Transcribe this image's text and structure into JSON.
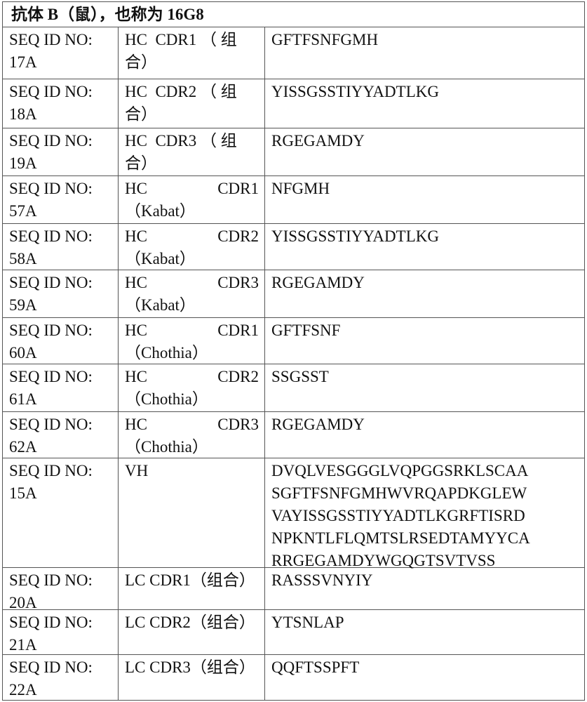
{
  "title": "抗体 B（鼠），也称为 16G8",
  "rows": [
    {
      "seq": [
        "SEQ ID NO:",
        "17A"
      ],
      "label": [
        "HC  CDR1 （ 组",
        "合）"
      ],
      "label_style": "plain",
      "value": [
        "GFTFSNFGMH"
      ]
    },
    {
      "seq": [
        "SEQ ID NO:",
        "18A"
      ],
      "label": [
        "HC  CDR2 （ 组",
        "合）"
      ],
      "label_style": "plain",
      "value": [
        "YISSGSSTIYYADTLKG"
      ]
    },
    {
      "seq": [
        "SEQ ID NO:",
        "19A"
      ],
      "label": [
        "HC  CDR3 （ 组",
        "合）"
      ],
      "label_style": "plain",
      "value": [
        "RGEGAMDY"
      ]
    },
    {
      "seq": [
        "SEQ ID NO:",
        "57A"
      ],
      "label": [
        "HC",
        "CDR1",
        "（Kabat）"
      ],
      "label_style": "justified",
      "value": [
        "NFGMH"
      ]
    },
    {
      "seq": [
        "SEQ ID NO:",
        "58A"
      ],
      "label": [
        "HC",
        "CDR2",
        "（Kabat）"
      ],
      "label_style": "justified",
      "value": [
        "YISSGSSTIYYADTLKG"
      ]
    },
    {
      "seq": [
        "SEQ ID NO:",
        "59A"
      ],
      "label": [
        "HC",
        "CDR3",
        "（Kabat）"
      ],
      "label_style": "justified",
      "value": [
        "RGEGAMDY"
      ]
    },
    {
      "seq": [
        "SEQ ID NO:",
        "60A"
      ],
      "label": [
        "HC",
        "CDR1",
        "（Chothia）"
      ],
      "label_style": "justified",
      "value": [
        "GFTFSNF"
      ]
    },
    {
      "seq": [
        "SEQ ID NO:",
        "61A"
      ],
      "label": [
        "HC",
        "CDR2",
        "（Chothia）"
      ],
      "label_style": "justified",
      "value": [
        "SSGSST"
      ]
    },
    {
      "seq": [
        "SEQ ID NO:",
        "62A"
      ],
      "label": [
        "HC",
        "CDR3",
        "（Chothia）"
      ],
      "label_style": "justified",
      "value": [
        "RGEGAMDY"
      ]
    },
    {
      "seq": [
        "SEQ ID NO:",
        "15A"
      ],
      "label": [
        "VH"
      ],
      "label_style": "plain",
      "value": [
        "DVQLVESGGGLVQPGGSRKLSCAA",
        "SGFTFSNFGMHWVRQAPDKGLEW",
        "VAYISSGSSTIYYADTLKGRFTISRD",
        "NPKNTLFLQMTSLRSEDTAMYYCA",
        "RRGEGAMDYWGQGTSVTVSS"
      ]
    },
    {
      "seq": [
        "SEQ ID NO:",
        "20A"
      ],
      "label": [
        "LC CDR1（组合）"
      ],
      "label_style": "plain",
      "value": [
        "RASSSVNYIY"
      ]
    },
    {
      "seq": [
        "SEQ ID NO:",
        "21A"
      ],
      "label": [
        "LC CDR2（组合）"
      ],
      "label_style": "plain",
      "value": [
        "YTSNLAP"
      ]
    },
    {
      "seq": [
        "SEQ ID NO:",
        "22A"
      ],
      "label": [
        "LC CDR3（组合）"
      ],
      "label_style": "plain",
      "value": [
        "QQFTSSPFT"
      ]
    }
  ]
}
